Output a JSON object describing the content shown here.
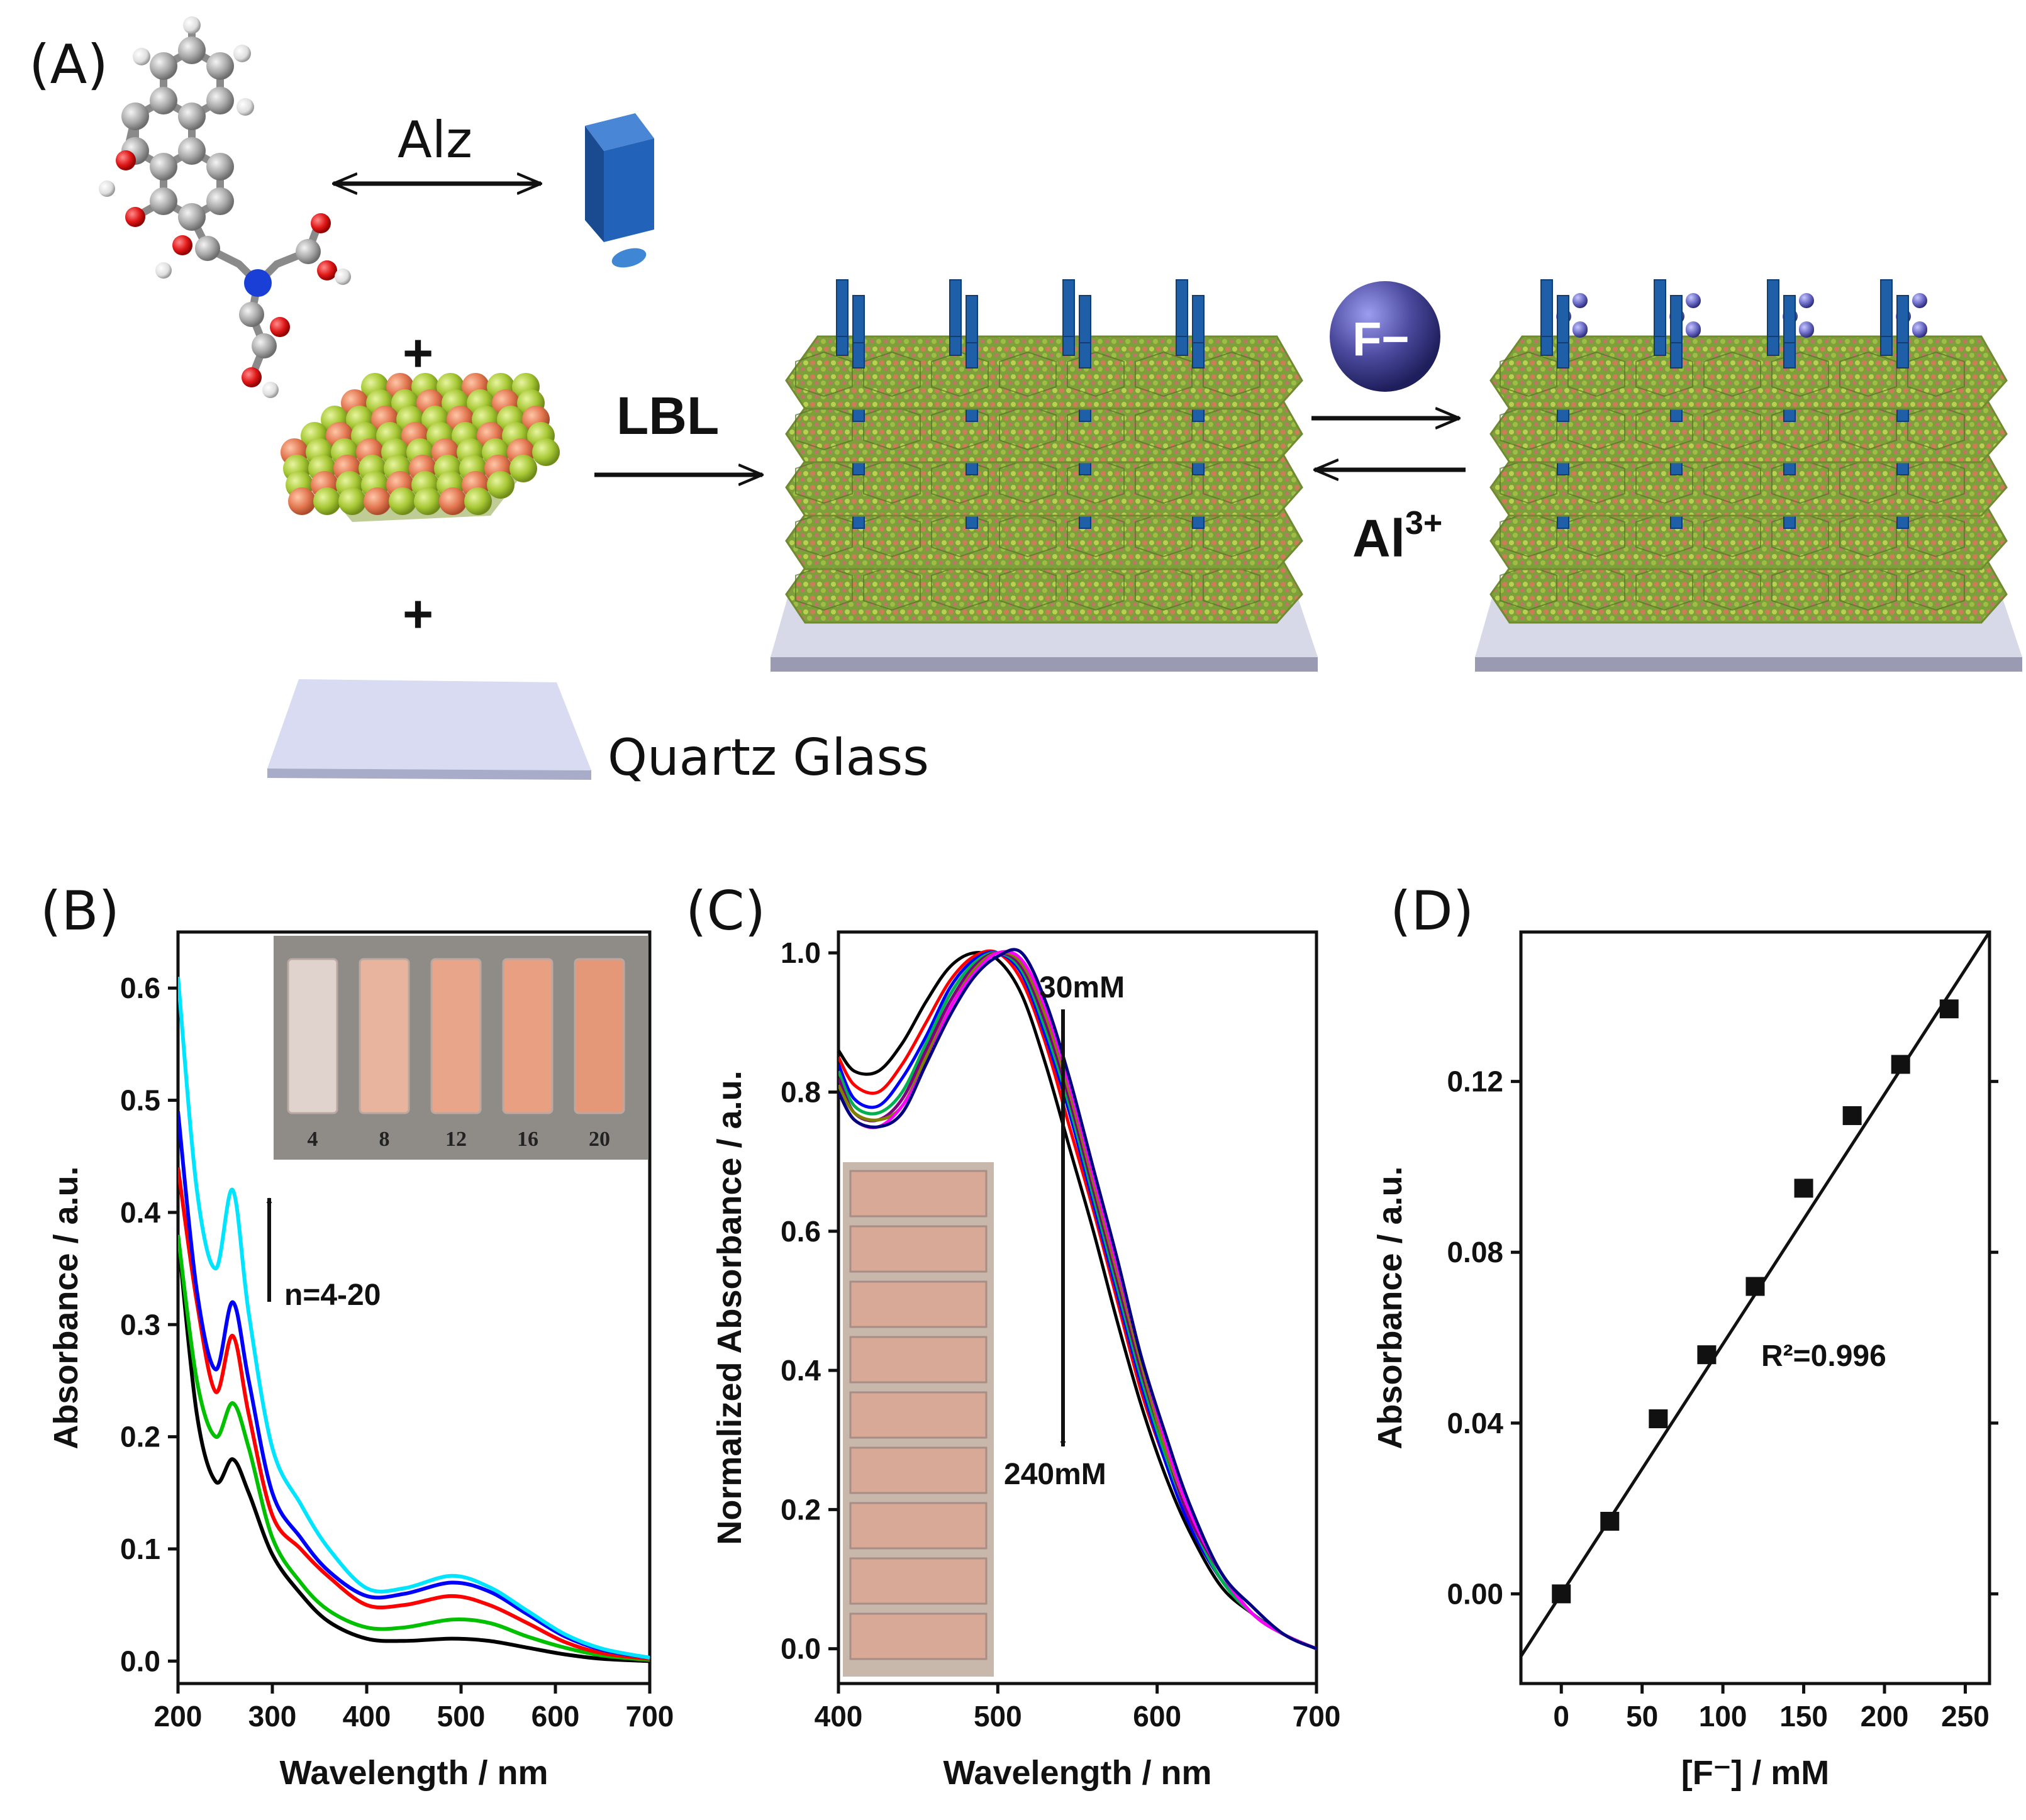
{
  "panels": {
    "A": "(A)",
    "B": "(B)",
    "C": "(C)",
    "D": "(D)"
  },
  "scheme": {
    "alz_label": "Alz",
    "plus_1": "+",
    "plus_2": "+",
    "lbl_label": "LBL",
    "quartz_label": "Quartz Glass",
    "fluoride_symbol": "F−",
    "aluminum_base": "Al",
    "aluminum_charge": "3+"
  },
  "colors": {
    "ldh_green": "#a6c733",
    "ldh_orange": "#e27750",
    "alz_blue": "#1f5fa8",
    "fluoride_ball": "#4b4a9e",
    "glass": "#c9cbe6"
  },
  "chart_data": [
    {
      "type": "line",
      "panel": "B",
      "xlabel": "Wavelength / nm",
      "ylabel": "Absorbance / a.u.",
      "xlim": [
        200,
        700
      ],
      "ylim": [
        -0.02,
        0.65
      ],
      "xticks": [
        200,
        300,
        400,
        500,
        600,
        700
      ],
      "yticks": [
        0.0,
        0.1,
        0.2,
        0.3,
        0.4,
        0.5,
        0.6
      ],
      "annotation": "n=4-20",
      "inset_labels": [
        "4",
        "8",
        "12",
        "16",
        "20"
      ],
      "x": [
        200,
        220,
        240,
        258,
        275,
        300,
        330,
        360,
        400,
        440,
        490,
        530,
        570,
        610,
        650,
        700
      ],
      "series": [
        {
          "color": "#000000",
          "values": [
            0.38,
            0.22,
            0.16,
            0.18,
            0.15,
            0.095,
            0.06,
            0.035,
            0.02,
            0.018,
            0.02,
            0.018,
            0.012,
            0.006,
            0.002,
            0.0
          ]
        },
        {
          "color": "#00c000",
          "values": [
            0.38,
            0.25,
            0.2,
            0.23,
            0.19,
            0.11,
            0.07,
            0.045,
            0.03,
            0.03,
            0.037,
            0.034,
            0.022,
            0.012,
            0.005,
            0.001
          ]
        },
        {
          "color": "#ff0000",
          "values": [
            0.44,
            0.32,
            0.24,
            0.29,
            0.22,
            0.13,
            0.1,
            0.075,
            0.05,
            0.05,
            0.058,
            0.05,
            0.034,
            0.017,
            0.007,
            0.002
          ]
        },
        {
          "color": "#0000ff",
          "values": [
            0.49,
            0.33,
            0.26,
            0.32,
            0.25,
            0.15,
            0.11,
            0.08,
            0.058,
            0.06,
            0.07,
            0.062,
            0.042,
            0.022,
            0.01,
            0.003
          ]
        },
        {
          "color": "#00e5ff",
          "values": [
            0.61,
            0.42,
            0.35,
            0.42,
            0.31,
            0.19,
            0.14,
            0.1,
            0.065,
            0.065,
            0.076,
            0.066,
            0.045,
            0.024,
            0.011,
            0.003
          ]
        }
      ]
    },
    {
      "type": "line",
      "panel": "C",
      "xlabel": "Wavelength / nm",
      "ylabel": "Normalized Absorbance / a.u.",
      "xlim": [
        400,
        700
      ],
      "ylim": [
        -0.05,
        1.03
      ],
      "xticks": [
        400,
        500,
        600,
        700
      ],
      "yticks": [
        0.0,
        0.2,
        0.4,
        0.6,
        0.8,
        1.0
      ],
      "annotation_top": "30mM",
      "annotation_bottom": "240mM",
      "x": [
        400,
        410,
        425,
        440,
        455,
        470,
        485,
        500,
        515,
        530,
        545,
        560,
        575,
        590,
        605,
        620,
        640,
        660,
        680,
        700
      ],
      "series": [
        {
          "color": "#000000",
          "values": [
            0.86,
            0.83,
            0.83,
            0.87,
            0.93,
            0.98,
            1.0,
            0.99,
            0.94,
            0.84,
            0.72,
            0.6,
            0.47,
            0.35,
            0.25,
            0.17,
            0.09,
            0.05,
            0.02,
            0.0
          ]
        },
        {
          "color": "#ff0000",
          "values": [
            0.85,
            0.81,
            0.8,
            0.84,
            0.9,
            0.96,
            0.995,
            1.0,
            0.96,
            0.87,
            0.75,
            0.63,
            0.5,
            0.37,
            0.27,
            0.18,
            0.1,
            0.05,
            0.02,
            0.0
          ]
        },
        {
          "color": "#0000ff",
          "values": [
            0.84,
            0.79,
            0.78,
            0.82,
            0.88,
            0.95,
            0.99,
            1.0,
            0.97,
            0.88,
            0.77,
            0.64,
            0.51,
            0.38,
            0.27,
            0.18,
            0.1,
            0.05,
            0.02,
            0.0
          ]
        },
        {
          "color": "#00b050",
          "values": [
            0.83,
            0.78,
            0.77,
            0.8,
            0.87,
            0.94,
            0.985,
            1.0,
            0.975,
            0.89,
            0.78,
            0.65,
            0.52,
            0.39,
            0.28,
            0.19,
            0.1,
            0.05,
            0.02,
            0.0
          ]
        },
        {
          "color": "#800080",
          "values": [
            0.82,
            0.77,
            0.76,
            0.79,
            0.86,
            0.93,
            0.98,
            1.0,
            0.98,
            0.9,
            0.79,
            0.66,
            0.53,
            0.4,
            0.29,
            0.19,
            0.11,
            0.05,
            0.02,
            0.0
          ]
        },
        {
          "color": "#808000",
          "values": [
            0.81,
            0.77,
            0.76,
            0.78,
            0.85,
            0.92,
            0.975,
            1.0,
            0.985,
            0.91,
            0.8,
            0.67,
            0.54,
            0.41,
            0.29,
            0.2,
            0.11,
            0.05,
            0.02,
            0.0
          ]
        },
        {
          "color": "#ff00ff",
          "values": [
            0.8,
            0.76,
            0.75,
            0.78,
            0.84,
            0.92,
            0.97,
            1.0,
            0.99,
            0.92,
            0.81,
            0.68,
            0.55,
            0.42,
            0.3,
            0.2,
            0.11,
            0.05,
            0.02,
            0.0
          ]
        },
        {
          "color": "#000080",
          "values": [
            0.8,
            0.76,
            0.75,
            0.77,
            0.84,
            0.91,
            0.965,
            0.995,
            1.0,
            0.93,
            0.82,
            0.69,
            0.56,
            0.42,
            0.31,
            0.21,
            0.11,
            0.06,
            0.02,
            0.0
          ]
        }
      ]
    },
    {
      "type": "scatter",
      "panel": "D",
      "xlabel": "[F⁻] / mM",
      "ylabel": "Absorbance / a.u.",
      "xlim": [
        -25,
        265
      ],
      "ylim": [
        -0.021,
        0.155
      ],
      "xticks": [
        0,
        50,
        100,
        150,
        200,
        250
      ],
      "yticks": [
        0.0,
        0.04,
        0.08,
        0.12
      ],
      "ytick_labels": [
        "0.00",
        "0.04",
        "0.08",
        "0.12"
      ],
      "annotation": "R²=0.996",
      "x": [
        0,
        30,
        60,
        90,
        120,
        150,
        180,
        210,
        240
      ],
      "y": [
        0.0,
        0.017,
        0.041,
        0.056,
        0.072,
        0.095,
        0.112,
        0.124,
        0.137
      ],
      "fit": {
        "slope": 0.000585,
        "intercept": 0.0
      }
    }
  ]
}
